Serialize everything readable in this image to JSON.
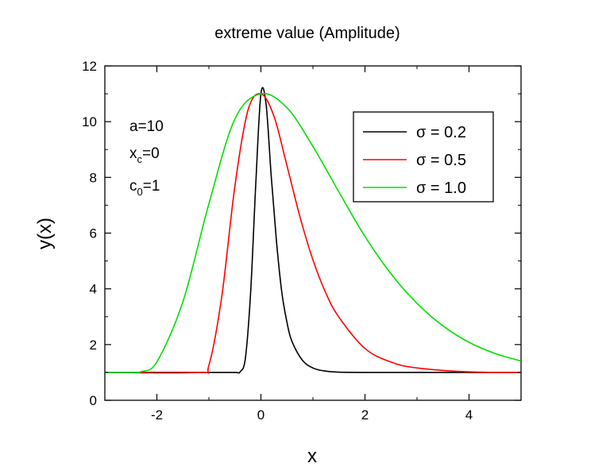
{
  "chart_data": {
    "type": "line",
    "title": "extreme value (Amplitude)",
    "xlabel": "x",
    "ylabel": "y(x)",
    "xlim": [
      -3,
      5
    ],
    "ylim": [
      0,
      12
    ],
    "x_ticks": [
      -2,
      0,
      2,
      4
    ],
    "y_ticks": [
      0,
      2,
      4,
      6,
      8,
      10,
      12
    ],
    "grid": false,
    "legend_position": "top-right",
    "annotations": {
      "line1": {
        "prefix": "a=10",
        "sub": "",
        "suffix": ""
      },
      "line2": {
        "prefix": "x",
        "sub": "c",
        "suffix": "=0"
      },
      "line3": {
        "prefix": "c",
        "sub": "0",
        "suffix": "=1"
      }
    },
    "series": [
      {
        "name": "σ = 0.2",
        "color": "#000000",
        "x": [
          -3,
          -1,
          -0.5,
          -0.4,
          -0.3,
          -0.2,
          -0.1,
          0,
          0.1,
          0.2,
          0.3,
          0.4,
          0.5,
          0.6,
          0.8,
          1.0,
          1.2,
          1.5,
          2.0,
          3,
          5
        ],
        "y": [
          1,
          1,
          1.0,
          1.02,
          1.5,
          3.8,
          7.7,
          11.0,
          10.6,
          8.0,
          5.7,
          3.9,
          2.8,
          2.1,
          1.43,
          1.16,
          1.06,
          1.01,
          1.0,
          1.0,
          1.0
        ]
      },
      {
        "name": "σ = 0.5",
        "color": "#ff0000",
        "x": [
          -3,
          -1.2,
          -1.0,
          -0.75,
          -0.5,
          -0.25,
          0,
          0.25,
          0.5,
          0.75,
          1.0,
          1.25,
          1.5,
          2.0,
          2.5,
          3.0,
          4.0,
          5.0
        ],
        "y": [
          1,
          1.0,
          1.26,
          3.76,
          7.7,
          10.4,
          11.0,
          10.2,
          8.42,
          6.59,
          5.04,
          3.84,
          2.98,
          1.86,
          1.37,
          1.16,
          1.02,
          1.0
        ]
      },
      {
        "name": "σ = 1.0",
        "color": "#00e000",
        "x": [
          -3,
          -2.5,
          -2.3,
          -2.0,
          -1.5,
          -1.0,
          -0.5,
          0,
          0.5,
          1.0,
          1.5,
          2.0,
          2.5,
          3.0,
          3.5,
          4.0,
          4.5,
          5.0
        ],
        "y": [
          1.0,
          1.0,
          1.03,
          1.38,
          3.54,
          7.05,
          10.1,
          11.0,
          10.5,
          9.11,
          7.47,
          5.88,
          4.54,
          3.48,
          2.67,
          2.08,
          1.68,
          1.41
        ]
      }
    ]
  }
}
